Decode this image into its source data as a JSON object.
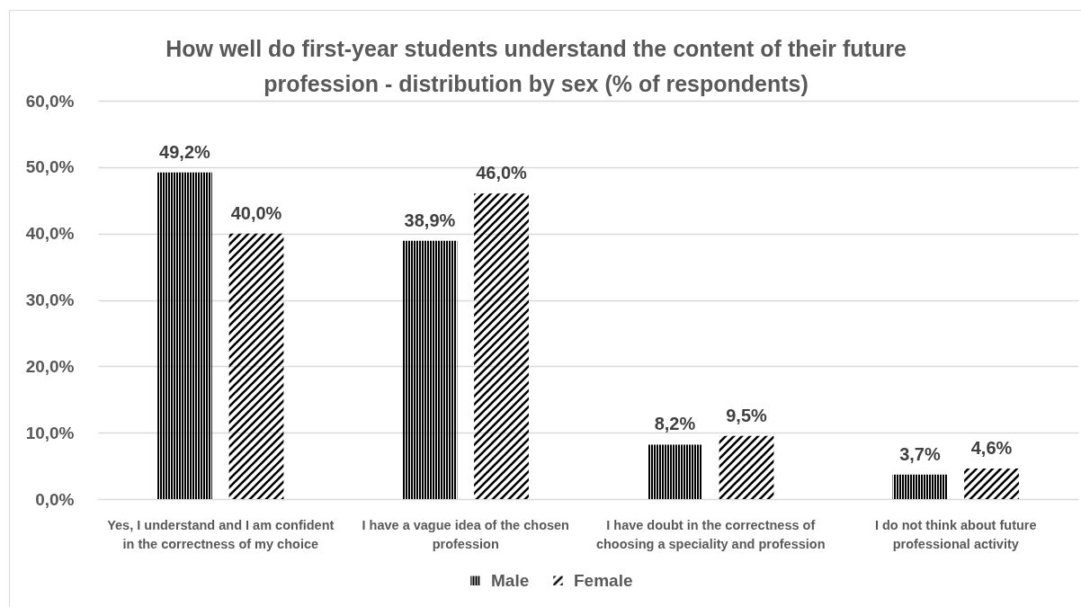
{
  "chart_data": {
    "type": "bar",
    "title": "How well do first-year students understand the content of their future profession - distribution by sex (% of respondents)",
    "categories": [
      "Yes, I understand and I am confident in the correctness of my choice",
      "I have a vague idea of the chosen profession",
      "I have doubt in the correctness of choosing a speciality and profession",
      "I do not think about future professional activity"
    ],
    "series": [
      {
        "name": "Male",
        "color": "#000000",
        "values": [
          49.2,
          38.9,
          8.2,
          3.7
        ],
        "value_labels": [
          "49,2%",
          "38,9%",
          "8,2%",
          "3,7%"
        ]
      },
      {
        "name": "Female",
        "color": "#000000",
        "values": [
          40.0,
          46.0,
          9.5,
          4.6
        ],
        "value_labels": [
          "40,0%",
          "46,0%",
          "9,5%",
          "4,6%"
        ]
      }
    ],
    "ylim": [
      0,
      60
    ],
    "yticks": [
      {
        "value": 0,
        "label": "0,0%"
      },
      {
        "value": 10,
        "label": "10,0%"
      },
      {
        "value": 20,
        "label": "20,0%"
      },
      {
        "value": 30,
        "label": "30,0%"
      },
      {
        "value": 40,
        "label": "40,0%"
      },
      {
        "value": 50,
        "label": "50,0%"
      },
      {
        "value": 60,
        "label": "60,0%"
      }
    ],
    "grid": "y",
    "legend": "bottom"
  }
}
